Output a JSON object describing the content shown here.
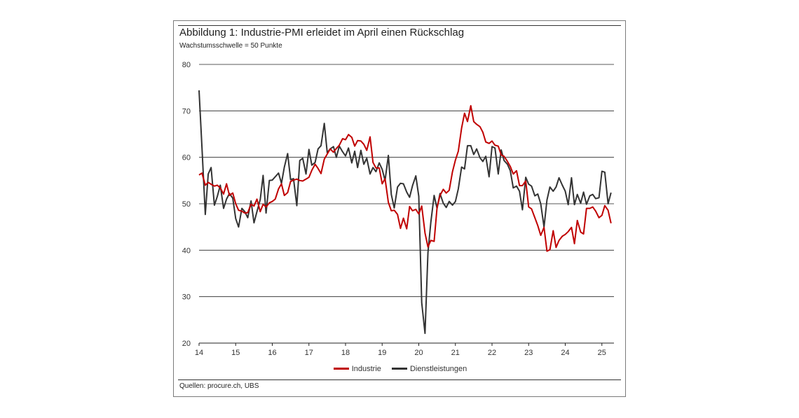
{
  "figure": {
    "title": "Abbildung 1: Industrie-PMI erleidet im April einen Rückschlag",
    "subtitle": "Wachstumsschwelle = 50 Punkte",
    "source": "Quellen: procure.ch, UBS"
  },
  "chart_data": {
    "type": "line",
    "title": "Abbildung 1: Industrie-PMI erleidet im April einen Rückschlag",
    "subtitle": "Wachstumsschwelle = 50 Punkte",
    "xlabel": "",
    "ylabel": "",
    "ylim": [
      20,
      80
    ],
    "yticks": [
      20,
      30,
      40,
      50,
      60,
      70,
      80
    ],
    "ytick_labels": [
      "20",
      "30",
      "40",
      "50",
      "60",
      "70",
      "80"
    ],
    "xlim": [
      2014.0,
      2025.33
    ],
    "xticks": [
      2014,
      2015,
      2016,
      2017,
      2018,
      2019,
      2020,
      2021,
      2022,
      2023,
      2024,
      2025
    ],
    "xtick_labels": [
      "14",
      "15",
      "16",
      "17",
      "18",
      "19",
      "20",
      "21",
      "22",
      "23",
      "24",
      "25"
    ],
    "grid": "horizontal",
    "legend_position": "bottom",
    "series": [
      {
        "name": "Industrie",
        "color": "#c00000",
        "points": [
          [
            2014.0,
            56.2
          ],
          [
            2014.08,
            56.6
          ],
          [
            2014.17,
            54.0
          ],
          [
            2014.25,
            54.6
          ],
          [
            2014.33,
            54.2
          ],
          [
            2014.42,
            53.8
          ],
          [
            2014.5,
            54.0
          ],
          [
            2014.58,
            53.4
          ],
          [
            2014.67,
            52.1
          ],
          [
            2014.75,
            54.3
          ],
          [
            2014.83,
            51.8
          ],
          [
            2014.92,
            52.3
          ],
          [
            2015.0,
            50.0
          ],
          [
            2015.08,
            48.6
          ],
          [
            2015.17,
            48.4
          ],
          [
            2015.25,
            48.0
          ],
          [
            2015.33,
            48.1
          ],
          [
            2015.42,
            49.9
          ],
          [
            2015.5,
            49.5
          ],
          [
            2015.58,
            51.0
          ],
          [
            2015.67,
            48.3
          ],
          [
            2015.75,
            49.9
          ],
          [
            2015.83,
            49.3
          ],
          [
            2015.92,
            50.2
          ],
          [
            2016.0,
            50.5
          ],
          [
            2016.08,
            51.0
          ],
          [
            2016.17,
            53.2
          ],
          [
            2016.25,
            54.3
          ],
          [
            2016.33,
            51.8
          ],
          [
            2016.42,
            52.4
          ],
          [
            2016.5,
            54.8
          ],
          [
            2016.58,
            55.1
          ],
          [
            2016.67,
            55.3
          ],
          [
            2016.75,
            55.0
          ],
          [
            2016.83,
            54.9
          ],
          [
            2016.92,
            55.3
          ],
          [
            2017.0,
            55.7
          ],
          [
            2017.08,
            57.2
          ],
          [
            2017.17,
            58.5
          ],
          [
            2017.25,
            57.6
          ],
          [
            2017.33,
            56.5
          ],
          [
            2017.42,
            59.6
          ],
          [
            2017.5,
            60.7
          ],
          [
            2017.58,
            61.8
          ],
          [
            2017.67,
            61.1
          ],
          [
            2017.75,
            61.9
          ],
          [
            2017.83,
            62.6
          ],
          [
            2017.92,
            64.0
          ],
          [
            2018.0,
            63.8
          ],
          [
            2018.08,
            64.9
          ],
          [
            2018.17,
            64.3
          ],
          [
            2018.25,
            62.4
          ],
          [
            2018.33,
            63.6
          ],
          [
            2018.42,
            63.5
          ],
          [
            2018.5,
            62.8
          ],
          [
            2018.58,
            61.5
          ],
          [
            2018.67,
            64.4
          ],
          [
            2018.75,
            58.9
          ],
          [
            2018.83,
            57.7
          ],
          [
            2018.92,
            57.7
          ],
          [
            2019.0,
            54.3
          ],
          [
            2019.08,
            55.4
          ],
          [
            2019.17,
            50.3
          ],
          [
            2019.25,
            48.5
          ],
          [
            2019.33,
            48.6
          ],
          [
            2019.42,
            47.7
          ],
          [
            2019.5,
            44.7
          ],
          [
            2019.58,
            46.9
          ],
          [
            2019.67,
            44.6
          ],
          [
            2019.75,
            49.4
          ],
          [
            2019.83,
            48.5
          ],
          [
            2019.92,
            48.8
          ],
          [
            2020.0,
            47.8
          ],
          [
            2020.08,
            49.5
          ],
          [
            2020.17,
            43.7
          ],
          [
            2020.25,
            40.7
          ],
          [
            2020.33,
            42.1
          ],
          [
            2020.42,
            41.9
          ],
          [
            2020.5,
            49.2
          ],
          [
            2020.58,
            51.8
          ],
          [
            2020.67,
            53.1
          ],
          [
            2020.75,
            52.3
          ],
          [
            2020.83,
            52.9
          ],
          [
            2020.92,
            56.9
          ],
          [
            2021.0,
            59.4
          ],
          [
            2021.08,
            61.3
          ],
          [
            2021.17,
            66.3
          ],
          [
            2021.25,
            69.5
          ],
          [
            2021.33,
            67.7
          ],
          [
            2021.42,
            71.1
          ],
          [
            2021.5,
            67.7
          ],
          [
            2021.58,
            67.1
          ],
          [
            2021.67,
            66.6
          ],
          [
            2021.75,
            65.4
          ],
          [
            2021.83,
            63.3
          ],
          [
            2021.92,
            63.0
          ],
          [
            2022.0,
            63.5
          ],
          [
            2022.08,
            62.6
          ],
          [
            2022.17,
            62.4
          ],
          [
            2022.25,
            60.5
          ],
          [
            2022.33,
            60.2
          ],
          [
            2022.42,
            59.1
          ],
          [
            2022.5,
            58.0
          ],
          [
            2022.58,
            56.4
          ],
          [
            2022.67,
            57.1
          ],
          [
            2022.75,
            53.9
          ],
          [
            2022.83,
            53.9
          ],
          [
            2022.92,
            54.9
          ],
          [
            2023.0,
            49.3
          ],
          [
            2023.08,
            48.9
          ],
          [
            2023.17,
            47.0
          ],
          [
            2023.25,
            45.3
          ],
          [
            2023.33,
            43.2
          ],
          [
            2023.42,
            44.9
          ],
          [
            2023.5,
            39.8
          ],
          [
            2023.58,
            40.1
          ],
          [
            2023.67,
            44.2
          ],
          [
            2023.75,
            40.6
          ],
          [
            2023.83,
            42.1
          ],
          [
            2023.92,
            43.0
          ],
          [
            2024.0,
            43.4
          ],
          [
            2024.08,
            44.0
          ],
          [
            2024.17,
            44.9
          ],
          [
            2024.25,
            41.4
          ],
          [
            2024.33,
            46.4
          ],
          [
            2024.42,
            43.9
          ],
          [
            2024.5,
            43.5
          ],
          [
            2024.58,
            49.0
          ],
          [
            2024.67,
            49.0
          ],
          [
            2024.75,
            49.3
          ],
          [
            2024.83,
            48.4
          ],
          [
            2024.92,
            47.0
          ],
          [
            2025.0,
            47.5
          ],
          [
            2025.08,
            49.6
          ],
          [
            2025.17,
            48.6
          ],
          [
            2025.25,
            45.8
          ]
        ]
      },
      {
        "name": "Dienstleistungen",
        "color": "#333333",
        "points": [
          [
            2014.0,
            74.4
          ],
          [
            2014.08,
            62.0
          ],
          [
            2014.17,
            47.7
          ],
          [
            2014.25,
            56.4
          ],
          [
            2014.33,
            57.8
          ],
          [
            2014.42,
            49.7
          ],
          [
            2014.5,
            51.6
          ],
          [
            2014.58,
            54.0
          ],
          [
            2014.67,
            49.0
          ],
          [
            2014.75,
            51.0
          ],
          [
            2014.83,
            52.2
          ],
          [
            2014.92,
            51.2
          ],
          [
            2015.0,
            46.8
          ],
          [
            2015.08,
            45.0
          ],
          [
            2015.17,
            49.0
          ],
          [
            2015.25,
            48.3
          ],
          [
            2015.33,
            47.0
          ],
          [
            2015.42,
            50.6
          ],
          [
            2015.5,
            45.9
          ],
          [
            2015.58,
            48.3
          ],
          [
            2015.67,
            50.9
          ],
          [
            2015.75,
            56.1
          ],
          [
            2015.83,
            48.0
          ],
          [
            2015.92,
            55.0
          ],
          [
            2016.0,
            55.1
          ],
          [
            2016.08,
            55.8
          ],
          [
            2016.17,
            56.6
          ],
          [
            2016.25,
            54.4
          ],
          [
            2016.33,
            57.9
          ],
          [
            2016.42,
            60.8
          ],
          [
            2016.5,
            55.2
          ],
          [
            2016.58,
            55.4
          ],
          [
            2016.67,
            49.6
          ],
          [
            2016.75,
            59.3
          ],
          [
            2016.83,
            59.8
          ],
          [
            2016.92,
            56.4
          ],
          [
            2017.0,
            61.7
          ],
          [
            2017.08,
            58.3
          ],
          [
            2017.17,
            58.9
          ],
          [
            2017.25,
            61.8
          ],
          [
            2017.33,
            62.5
          ],
          [
            2017.42,
            67.3
          ],
          [
            2017.5,
            61.0
          ],
          [
            2017.58,
            61.8
          ],
          [
            2017.67,
            62.3
          ],
          [
            2017.75,
            60.0
          ],
          [
            2017.83,
            62.4
          ],
          [
            2017.92,
            61.2
          ],
          [
            2018.0,
            60.3
          ],
          [
            2018.08,
            62.0
          ],
          [
            2018.17,
            58.8
          ],
          [
            2018.25,
            61.3
          ],
          [
            2018.33,
            57.8
          ],
          [
            2018.42,
            61.5
          ],
          [
            2018.5,
            58.5
          ],
          [
            2018.58,
            59.8
          ],
          [
            2018.67,
            56.4
          ],
          [
            2018.75,
            57.8
          ],
          [
            2018.83,
            56.9
          ],
          [
            2018.92,
            58.8
          ],
          [
            2019.0,
            57.4
          ],
          [
            2019.08,
            55.0
          ],
          [
            2019.17,
            60.4
          ],
          [
            2019.25,
            52.0
          ],
          [
            2019.33,
            49.1
          ],
          [
            2019.42,
            53.6
          ],
          [
            2019.5,
            54.4
          ],
          [
            2019.58,
            54.3
          ],
          [
            2019.67,
            52.5
          ],
          [
            2019.75,
            51.4
          ],
          [
            2019.83,
            53.9
          ],
          [
            2019.92,
            56.0
          ],
          [
            2020.0,
            51.6
          ],
          [
            2020.08,
            28.7
          ],
          [
            2020.17,
            22.1
          ],
          [
            2020.25,
            39.5
          ],
          [
            2020.33,
            46.0
          ],
          [
            2020.42,
            51.8
          ],
          [
            2020.5,
            49.0
          ],
          [
            2020.58,
            52.2
          ],
          [
            2020.67,
            50.1
          ],
          [
            2020.75,
            49.2
          ],
          [
            2020.83,
            50.5
          ],
          [
            2020.92,
            49.7
          ],
          [
            2021.0,
            50.5
          ],
          [
            2021.08,
            53.2
          ],
          [
            2021.17,
            57.9
          ],
          [
            2021.25,
            57.5
          ],
          [
            2021.33,
            62.5
          ],
          [
            2021.42,
            62.5
          ],
          [
            2021.5,
            60.6
          ],
          [
            2021.58,
            61.8
          ],
          [
            2021.67,
            59.9
          ],
          [
            2021.75,
            59.1
          ],
          [
            2021.83,
            60.2
          ],
          [
            2021.92,
            55.8
          ],
          [
            2022.0,
            62.3
          ],
          [
            2022.08,
            62.0
          ],
          [
            2022.17,
            56.4
          ],
          [
            2022.25,
            61.6
          ],
          [
            2022.33,
            59.3
          ],
          [
            2022.42,
            58.5
          ],
          [
            2022.5,
            57.1
          ],
          [
            2022.58,
            53.4
          ],
          [
            2022.67,
            53.8
          ],
          [
            2022.75,
            52.7
          ],
          [
            2022.83,
            48.7
          ],
          [
            2022.92,
            55.7
          ],
          [
            2023.0,
            54.2
          ],
          [
            2023.08,
            53.8
          ],
          [
            2023.17,
            51.7
          ],
          [
            2023.25,
            52.1
          ],
          [
            2023.33,
            50.0
          ],
          [
            2023.42,
            45.0
          ],
          [
            2023.5,
            50.8
          ],
          [
            2023.58,
            53.6
          ],
          [
            2023.67,
            52.7
          ],
          [
            2023.75,
            53.6
          ],
          [
            2023.83,
            55.6
          ],
          [
            2023.92,
            54.0
          ],
          [
            2024.0,
            52.7
          ],
          [
            2024.08,
            49.8
          ],
          [
            2024.17,
            55.6
          ],
          [
            2024.25,
            49.8
          ],
          [
            2024.33,
            52.0
          ],
          [
            2024.42,
            50.1
          ],
          [
            2024.5,
            52.5
          ],
          [
            2024.58,
            49.9
          ],
          [
            2024.67,
            51.7
          ],
          [
            2024.75,
            52.0
          ],
          [
            2024.83,
            51.1
          ],
          [
            2024.92,
            51.3
          ],
          [
            2025.0,
            57.0
          ],
          [
            2025.08,
            56.8
          ],
          [
            2025.17,
            50.0
          ],
          [
            2025.25,
            52.4
          ]
        ]
      }
    ]
  }
}
